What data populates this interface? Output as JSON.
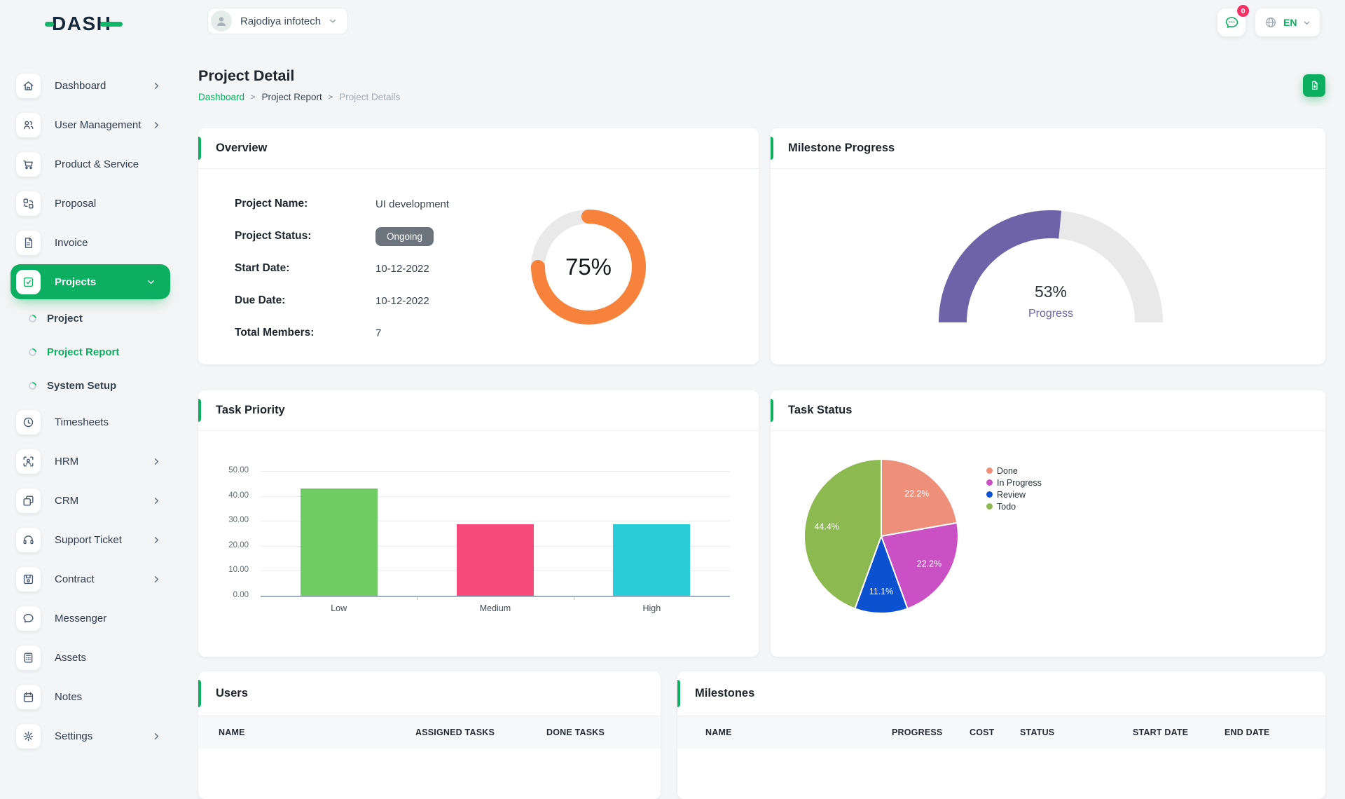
{
  "colors": {
    "primary": "#0caf60",
    "logo_dark": "#16283c",
    "logo_green": "#12b76a",
    "badge_gray": "#6c757d",
    "danger_badge": "#f73164",
    "donut_orange": "#f6823c",
    "gauge_purple": "#6e63a9",
    "track_gray": "#e9e9e9",
    "bar_green": "#6fcb63",
    "bar_pink": "#f8497b",
    "bar_cyan": "#29ccd9",
    "pie_done": "#ee8f7a",
    "pie_in_progress": "#c951c4",
    "pie_review": "#0b51d0",
    "pie_todo": "#8cba50"
  },
  "brand": {
    "logo_text": "DASH"
  },
  "header": {
    "company": "Rajodiya infotech",
    "chat_badge": "0",
    "language": "EN"
  },
  "sidebar": {
    "items": [
      {
        "label": "Dashboard",
        "icon": "home-icon",
        "chevron": "right"
      },
      {
        "label": "User Management",
        "icon": "users-icon",
        "chevron": "right"
      },
      {
        "label": "Product & Service",
        "icon": "cart-icon"
      },
      {
        "label": "Proposal",
        "icon": "swap-icon"
      },
      {
        "label": "Invoice",
        "icon": "invoice-icon"
      },
      {
        "label": "Projects",
        "icon": "check-square-icon",
        "chevron": "down",
        "active": true
      },
      {
        "label": "Project",
        "type": "sub"
      },
      {
        "label": "Project Report",
        "type": "sub",
        "active": true
      },
      {
        "label": "System Setup",
        "type": "sub"
      },
      {
        "label": "Timesheets",
        "icon": "clock-icon"
      },
      {
        "label": "HRM",
        "icon": "hrm-icon",
        "chevron": "right"
      },
      {
        "label": "CRM",
        "icon": "crm-icon",
        "chevron": "right"
      },
      {
        "label": "Support Ticket",
        "icon": "headset-icon",
        "chevron": "right"
      },
      {
        "label": "Contract",
        "icon": "floppy-icon",
        "chevron": "right"
      },
      {
        "label": "Messenger",
        "icon": "message-icon"
      },
      {
        "label": "Assets",
        "icon": "calculator-icon"
      },
      {
        "label": "Notes",
        "icon": "calendar-icon"
      },
      {
        "label": "Settings",
        "icon": "gear-icon",
        "chevron": "right"
      }
    ]
  },
  "page": {
    "title": "Project Detail",
    "breadcrumb": [
      "Dashboard",
      "Project Report",
      "Project Details"
    ]
  },
  "cards": {
    "overview": {
      "title": "Overview",
      "fields": [
        {
          "label": "Project Name:",
          "value": "UI development"
        },
        {
          "label": "Project Status:",
          "value": "Ongoing",
          "type": "badge"
        },
        {
          "label": "Start Date:",
          "value": "10-12-2022"
        },
        {
          "label": "Due Date:",
          "value": "10-12-2022"
        },
        {
          "label": "Total Members:",
          "value": "7"
        }
      ]
    }
  },
  "tables": {
    "users": {
      "title": "Users",
      "columns": [
        "NAME",
        "ASSIGNED TASKS",
        "DONE TASKS"
      ],
      "rows": []
    },
    "milestones": {
      "title": "Milestones",
      "columns": [
        "NAME",
        "PROGRESS",
        "COST",
        "STATUS",
        "START DATE",
        "END DATE"
      ],
      "rows": []
    }
  },
  "chart_data": [
    {
      "id": "project-completion",
      "type": "donut",
      "title": "Overview",
      "value": 75,
      "label": "75%",
      "color": "#f6823c",
      "track": "#e9e9e9"
    },
    {
      "id": "milestone-progress",
      "type": "gauge",
      "title": "Milestone Progress",
      "value": 53,
      "label": "53%",
      "caption": "Progress",
      "color": "#6e63a9",
      "track": "#e9e9ea",
      "range": [
        0,
        100
      ]
    },
    {
      "id": "task-priority",
      "type": "bar",
      "title": "Task Priority",
      "categories": [
        "Low",
        "Medium",
        "High"
      ],
      "values": [
        42.86,
        28.57,
        28.57
      ],
      "colors": [
        "#6fcb63",
        "#f8497b",
        "#29ccd9"
      ],
      "ylim": [
        0,
        50
      ],
      "yticks": [
        "50.00",
        "40.00",
        "30.00",
        "20.00",
        "10.00",
        "0.00"
      ],
      "grid": true,
      "legend": false,
      "xlabel": "",
      "ylabel": ""
    },
    {
      "id": "task-status",
      "type": "pie",
      "title": "Task Status",
      "labels": [
        "Done",
        "In Progress",
        "Review",
        "Todo"
      ],
      "values": [
        22.2,
        22.2,
        11.1,
        44.4
      ],
      "slice_labels": [
        "22.2%",
        "22.2%",
        "11.1%",
        "44.4%"
      ],
      "colors": [
        "#ee8f7a",
        "#c951c4",
        "#0b51d0",
        "#8cba50"
      ],
      "legend_position": "top-right"
    }
  ]
}
